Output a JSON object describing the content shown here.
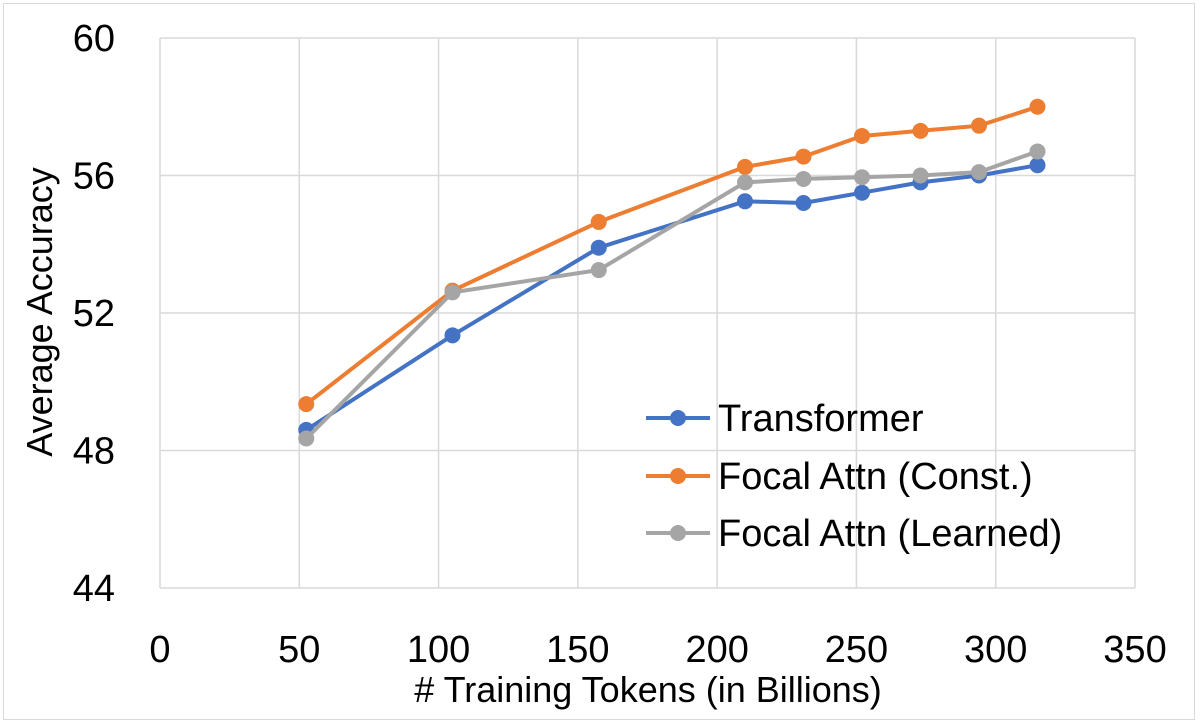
{
  "chart_data": {
    "type": "line",
    "title": "",
    "xlabel": "# Training Tokens (in Billions)",
    "ylabel": "Average Accuracy",
    "xlim": [
      0,
      350
    ],
    "ylim": [
      44,
      60
    ],
    "xticks": [
      0,
      50,
      100,
      150,
      200,
      250,
      300,
      350
    ],
    "yticks": [
      44,
      48,
      52,
      56,
      60
    ],
    "grid": true,
    "legend_position": "bottom-right",
    "series": [
      {
        "name": "Transformer",
        "color": "#4472C4",
        "x": [
          52.5,
          105,
          157.5,
          210,
          231,
          252,
          273,
          294,
          315
        ],
        "y": [
          48.6,
          51.35,
          53.9,
          55.25,
          55.2,
          55.5,
          55.8,
          56.0,
          56.3
        ]
      },
      {
        "name": "Focal Attn (Const.)",
        "color": "#ED7D31",
        "x": [
          52.5,
          105,
          157.5,
          210,
          231,
          252,
          273,
          294,
          315
        ],
        "y": [
          49.35,
          52.65,
          54.65,
          56.25,
          56.55,
          57.15,
          57.3,
          57.45,
          58.0
        ]
      },
      {
        "name": "Focal Attn (Learned)",
        "color": "#A5A5A5",
        "x": [
          52.5,
          105,
          157.5,
          210,
          231,
          252,
          273,
          294,
          315
        ],
        "y": [
          48.35,
          52.6,
          53.25,
          55.8,
          55.9,
          55.95,
          56.0,
          56.1,
          56.7
        ]
      }
    ]
  }
}
